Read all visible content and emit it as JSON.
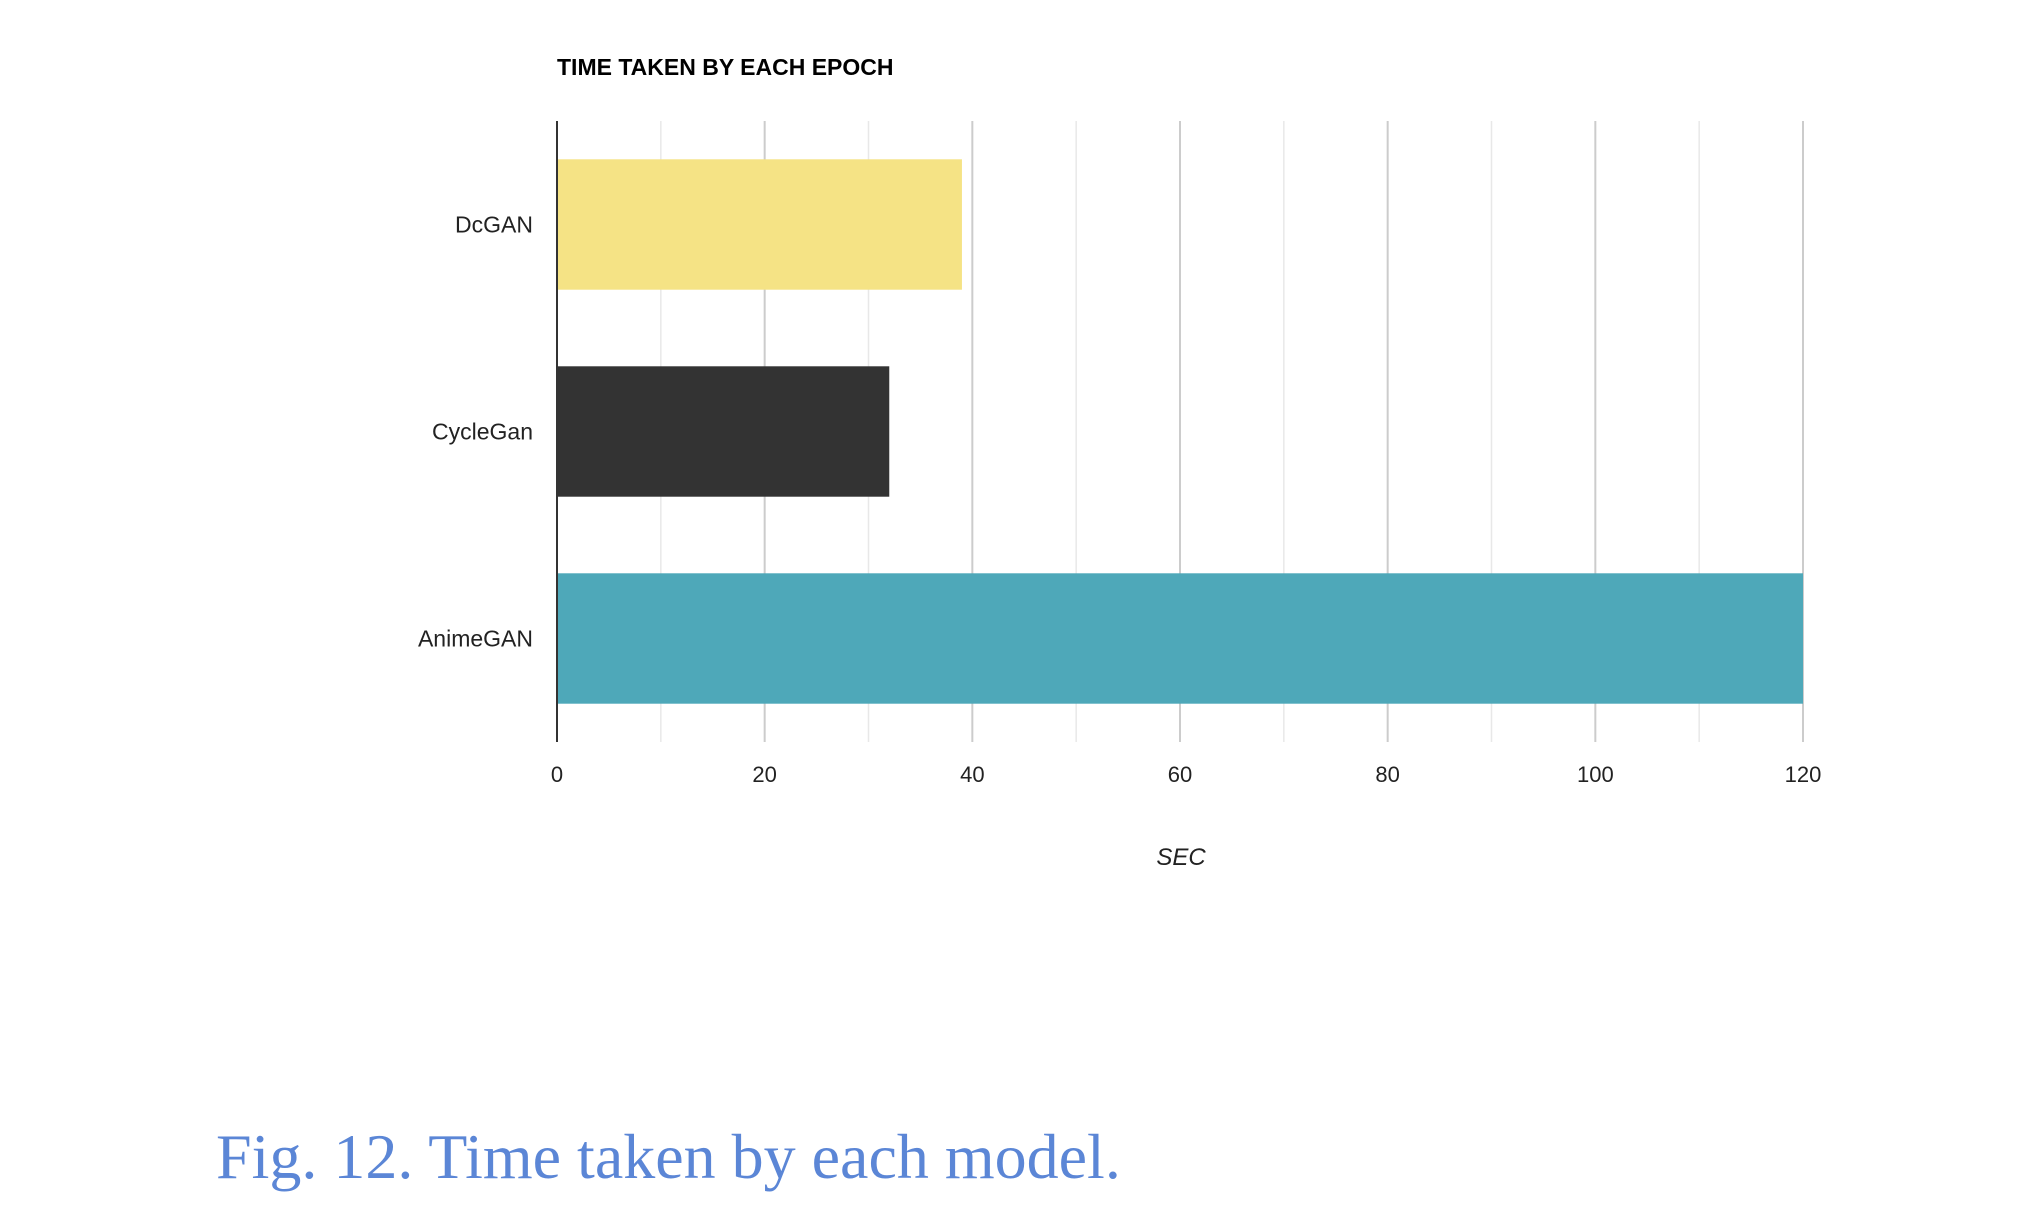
{
  "chart_data": {
    "type": "bar",
    "orientation": "horizontal",
    "title": "TIME TAKEN BY EACH EPOCH",
    "xlabel": "SEC",
    "ylabel": "",
    "categories": [
      "DcGAN",
      "CycleGan",
      "AnimeGAN"
    ],
    "values": [
      39,
      32,
      120
    ],
    "colors": [
      "#f5e385",
      "#333333",
      "#4ea8b9"
    ],
    "xlim": [
      0,
      120
    ],
    "xticks": [
      0,
      20,
      40,
      60,
      80,
      100,
      120
    ],
    "minor_grid_step": 10,
    "grid": true,
    "legend": "none"
  },
  "caption": "Fig. 12. Time taken by each model."
}
